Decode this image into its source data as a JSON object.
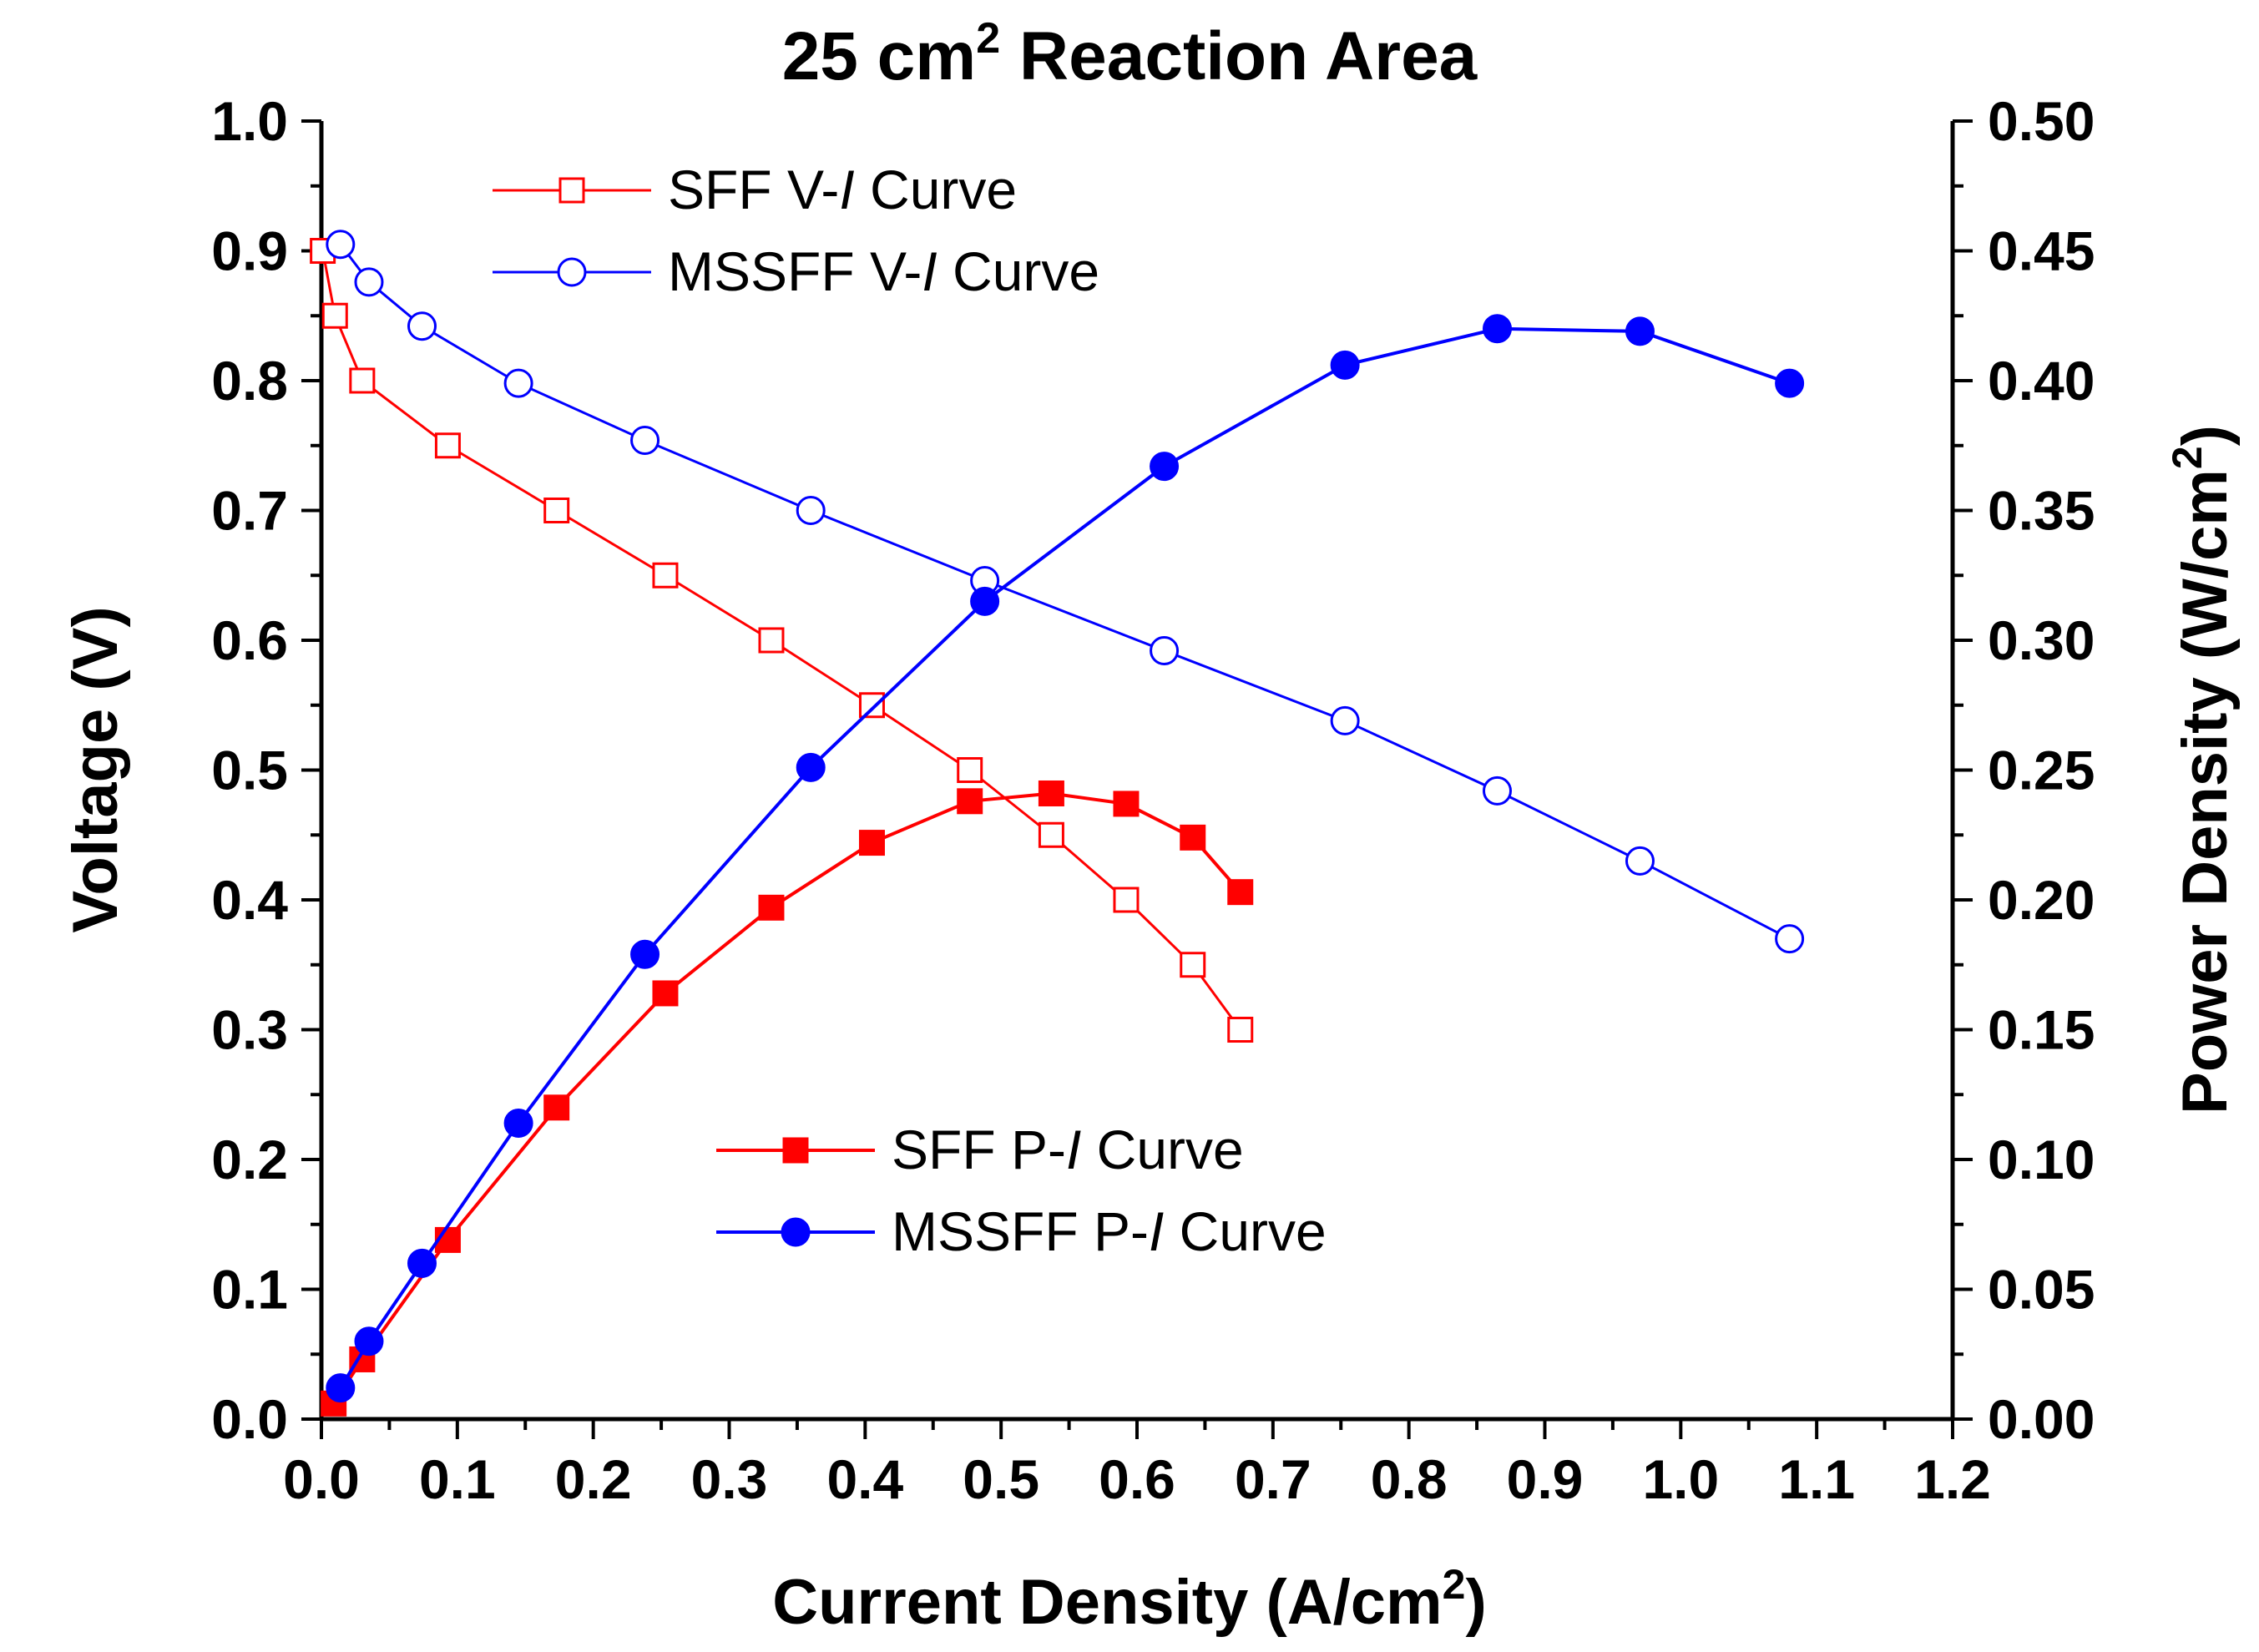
{
  "chart_data": {
    "type": "line",
    "title": "25 cm",
    "title_sup": "2",
    "title_rest": " Reaction Area",
    "xlabel": "Current Density (A/cm",
    "xlabel_sup": "2",
    "xlabel_end": ")",
    "ylabel": "Voltage (V)",
    "y2label": "Power Density (W/cm",
    "y2label_sup": "2",
    "y2label_end": ")",
    "xlim": [
      0,
      1.2
    ],
    "ylim": [
      0,
      1.0
    ],
    "y2lim": [
      0,
      0.5
    ],
    "x_ticks": [
      "0.0",
      "0.1",
      "0.2",
      "0.3",
      "0.4",
      "0.5",
      "0.6",
      "0.7",
      "0.8",
      "0.9",
      "1.0",
      "1.1",
      "1.2"
    ],
    "y_ticks": [
      "0.0",
      "0.1",
      "0.2",
      "0.3",
      "0.4",
      "0.5",
      "0.6",
      "0.7",
      "0.8",
      "0.9",
      "1.0"
    ],
    "y2_ticks": [
      "0.00",
      "0.05",
      "0.10",
      "0.15",
      "0.20",
      "0.25",
      "0.30",
      "0.35",
      "0.40",
      "0.45",
      "0.50"
    ],
    "series": [
      {
        "name": "SFF V-I Curve",
        "label_pre": "SFF V-",
        "label_ital": "I",
        "label_post": " Curve",
        "axis": "left",
        "color": "#ff0000",
        "marker": "square-open",
        "line_width": 2,
        "x": [
          0.001,
          0.01,
          0.03,
          0.093,
          0.173,
          0.253,
          0.331,
          0.405,
          0.477,
          0.537,
          0.592,
          0.641,
          0.676
        ],
        "y": [
          0.9,
          0.85,
          0.8,
          0.75,
          0.7,
          0.65,
          0.6,
          0.55,
          0.5,
          0.45,
          0.4,
          0.35,
          0.3
        ]
      },
      {
        "name": "MSSFF V-I Curve",
        "label_pre": "MSSFF V-",
        "label_ital": "I",
        "label_post": " Curve",
        "axis": "left",
        "color": "#0000ff",
        "marker": "circle-open",
        "line_width": 2,
        "x": [
          0.014,
          0.035,
          0.074,
          0.145,
          0.238,
          0.36,
          0.488,
          0.62,
          0.753,
          0.865,
          0.97,
          1.08
        ],
        "y": [
          0.905,
          0.876,
          0.842,
          0.798,
          0.754,
          0.7,
          0.646,
          0.592,
          0.538,
          0.484,
          0.43,
          0.37
        ]
      },
      {
        "name": "SFF P-I Curve",
        "label_pre": "SFF P-",
        "label_ital": "I",
        "label_post": " Curve",
        "axis": "right",
        "color": "#ff0000",
        "marker": "square-filled",
        "line_width": 3,
        "x": [
          0.009,
          0.03,
          0.093,
          0.173,
          0.253,
          0.331,
          0.405,
          0.477,
          0.537,
          0.592,
          0.641,
          0.676
        ],
        "y": [
          0.006,
          0.023,
          0.069,
          0.12,
          0.164,
          0.197,
          0.222,
          0.238,
          0.241,
          0.237,
          0.224,
          0.203
        ]
      },
      {
        "name": "MSSFF P-I Curve",
        "label_pre": "MSSFF P-",
        "label_ital": "I",
        "label_post": " Curve",
        "axis": "right",
        "color": "#0000ff",
        "marker": "circle-filled",
        "line_width": 3,
        "x": [
          0.014,
          0.035,
          0.074,
          0.145,
          0.238,
          0.36,
          0.488,
          0.62,
          0.753,
          0.865,
          0.97,
          1.08
        ],
        "y": [
          0.012,
          0.03,
          0.06,
          0.114,
          0.179,
          0.251,
          0.315,
          0.367,
          0.406,
          0.42,
          0.419,
          0.399
        ]
      }
    ],
    "legend_top": [
      "SFF V-I Curve",
      "MSSFF V-I Curve"
    ],
    "legend_bottom": [
      "SFF P-I Curve",
      "MSSFF P-I Curve"
    ]
  }
}
